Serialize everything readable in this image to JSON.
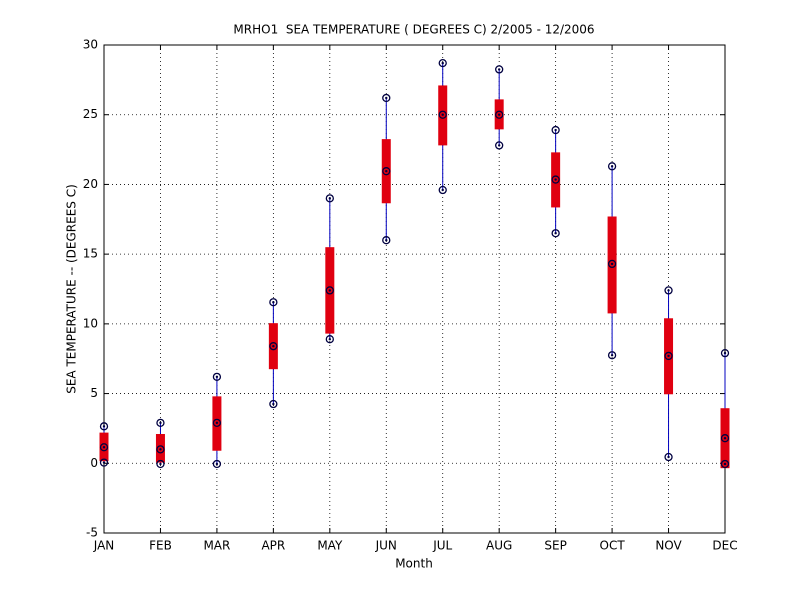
{
  "chart_data": {
    "type": "box",
    "title": "MRHO1  SEA TEMPERATURE ( DEGREES C) 2/2005 - 12/2006",
    "xlabel": "Month",
    "ylabel": "SEA TEMPERATURE -- (DEGREES C)",
    "categories": [
      "JAN",
      "FEB",
      "MAR",
      "APR",
      "MAY",
      "JUN",
      "JUL",
      "AUG",
      "SEP",
      "OCT",
      "NOV",
      "DEC"
    ],
    "min": [
      0.05,
      -0.05,
      -0.05,
      4.25,
      8.9,
      16.0,
      19.6,
      22.8,
      16.5,
      7.75,
      0.45,
      -0.05
    ],
    "q1": [
      0.15,
      0.05,
      0.9,
      6.75,
      9.3,
      18.65,
      22.8,
      23.95,
      18.35,
      10.75,
      4.95,
      -0.35
    ],
    "median": [
      1.15,
      1.0,
      2.9,
      8.4,
      12.4,
      20.95,
      25.0,
      25.0,
      20.35,
      14.3,
      7.7,
      1.8
    ],
    "q3": [
      2.2,
      2.1,
      4.8,
      10.05,
      15.5,
      23.25,
      27.1,
      26.1,
      22.3,
      17.7,
      10.4,
      3.95
    ],
    "max": [
      2.65,
      2.9,
      6.2,
      11.55,
      19.0,
      26.2,
      28.7,
      28.25,
      23.9,
      21.3,
      12.4,
      7.9
    ],
    "box_color": "#e00010",
    "whisker_color": "#0000c0",
    "marker_color": "#000040",
    "ylim": [
      -5,
      30
    ],
    "yticks": [
      -5,
      0,
      5,
      10,
      15,
      20,
      25,
      30
    ],
    "grid": true
  }
}
